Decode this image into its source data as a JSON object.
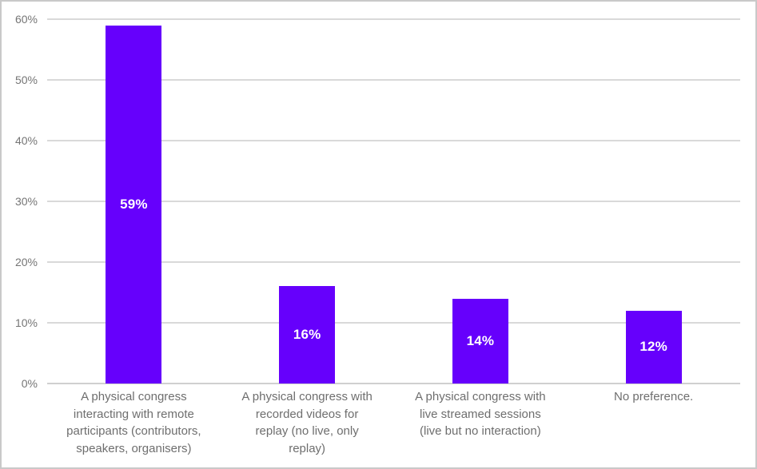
{
  "chart_data": {
    "type": "bar",
    "title": "",
    "xlabel": "",
    "ylabel": "",
    "categories": [
      "A physical congress interacting with remote participants (contributors, speakers, organisers)",
      "A physical congress with recorded videos for replay (no live, only replay)",
      "A physical congress with live streamed sessions (live but no interaction)",
      "No preference."
    ],
    "category_lines": [
      [
        "A physical congress",
        "interacting with remote",
        "participants (contributors,",
        "speakers, organisers)"
      ],
      [
        "A physical congress with",
        "recorded videos for",
        "replay (no live, only",
        "replay)"
      ],
      [
        "A physical congress with",
        "live streamed sessions",
        "(live but no interaction)"
      ],
      [
        "No preference."
      ]
    ],
    "values": [
      59,
      16,
      14,
      12
    ],
    "data_labels": [
      "59%",
      "16%",
      "14%",
      "12%"
    ],
    "ylim": [
      0,
      60
    ],
    "yticks": [
      {
        "value": 0,
        "label": "0%"
      },
      {
        "value": 10,
        "label": "10%"
      },
      {
        "value": 20,
        "label": "20%"
      },
      {
        "value": 30,
        "label": "30%"
      },
      {
        "value": 40,
        "label": "40%"
      },
      {
        "value": 50,
        "label": "50%"
      },
      {
        "value": 60,
        "label": "60%"
      }
    ],
    "grid": true,
    "legend": "none",
    "colors": {
      "bar": "#6600FC",
      "data_label": "#FFFFFF",
      "axis_text": "#757575",
      "category_text": "#6E6E6E",
      "gridline": "#D9D9D9",
      "baseline": "#D0D0D0",
      "background": "#FFFFFF",
      "border": "#C9C9C9"
    }
  }
}
